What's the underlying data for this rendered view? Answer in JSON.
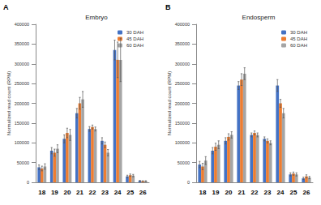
{
  "chart_data": [
    {
      "type": "bar",
      "panel": "A",
      "title": "Embryo",
      "y_label": "Normalized read count (RPM)",
      "categories": [
        "18",
        "19",
        "20",
        "21",
        "22",
        "23",
        "24",
        "25",
        "26"
      ],
      "series": [
        {
          "name": "30 DAH",
          "color": "#4472c4",
          "values": [
            38000,
            80000,
            110000,
            175000,
            135000,
            105000,
            335000,
            15000,
            4000
          ],
          "errors": [
            6000,
            8000,
            10000,
            12000,
            6000,
            8000,
            25000,
            3000,
            1000
          ]
        },
        {
          "name": "45 DAH",
          "color": "#ed7d31",
          "values": [
            35000,
            75000,
            125000,
            200000,
            140000,
            95000,
            310000,
            18000,
            3000
          ],
          "errors": [
            6000,
            9000,
            12000,
            15000,
            5000,
            7000,
            45000,
            3000,
            1000
          ]
        },
        {
          "name": "60 DAH",
          "color": "#a5a5a5",
          "values": [
            40000,
            85000,
            120000,
            210000,
            135000,
            75000,
            310000,
            17000,
            3000
          ],
          "errors": [
            7000,
            10000,
            14000,
            20000,
            5000,
            8000,
            55000,
            3000,
            1000
          ]
        }
      ],
      "ylim": [
        0,
        400000
      ],
      "yticks": [
        0,
        50000,
        100000,
        150000,
        200000,
        250000,
        300000,
        350000,
        400000
      ],
      "grid": false,
      "legend": "upper right"
    },
    {
      "type": "bar",
      "panel": "B",
      "title": "Endosperm",
      "y_label": "Normalized read count (RPM)",
      "categories": [
        "18",
        "19",
        "20",
        "21",
        "22",
        "23",
        "24",
        "25",
        "26"
      ],
      "series": [
        {
          "name": "30 DAH",
          "color": "#4472c4",
          "values": [
            45000,
            80000,
            105000,
            245000,
            120000,
            110000,
            245000,
            20000,
            10000
          ],
          "errors": [
            8000,
            8000,
            8000,
            10000,
            5000,
            5000,
            15000,
            4000,
            3000
          ]
        },
        {
          "name": "45 DAH",
          "color": "#ed7d31",
          "values": [
            40000,
            90000,
            115000,
            260000,
            125000,
            105000,
            200000,
            22000,
            15000
          ],
          "errors": [
            8000,
            9000,
            8000,
            15000,
            5000,
            5000,
            10000,
            4000,
            4000
          ]
        },
        {
          "name": "60 DAH",
          "color": "#a5a5a5",
          "values": [
            55000,
            95000,
            120000,
            275000,
            120000,
            100000,
            175000,
            20000,
            12000
          ],
          "errors": [
            10000,
            10000,
            8000,
            15000,
            5000,
            5000,
            12000,
            4000,
            3000
          ]
        }
      ],
      "ylim": [
        0,
        400000
      ],
      "yticks": [
        0,
        50000,
        100000,
        150000,
        200000,
        250000,
        300000,
        350000,
        400000
      ],
      "grid": false,
      "legend": "upper right"
    }
  ]
}
